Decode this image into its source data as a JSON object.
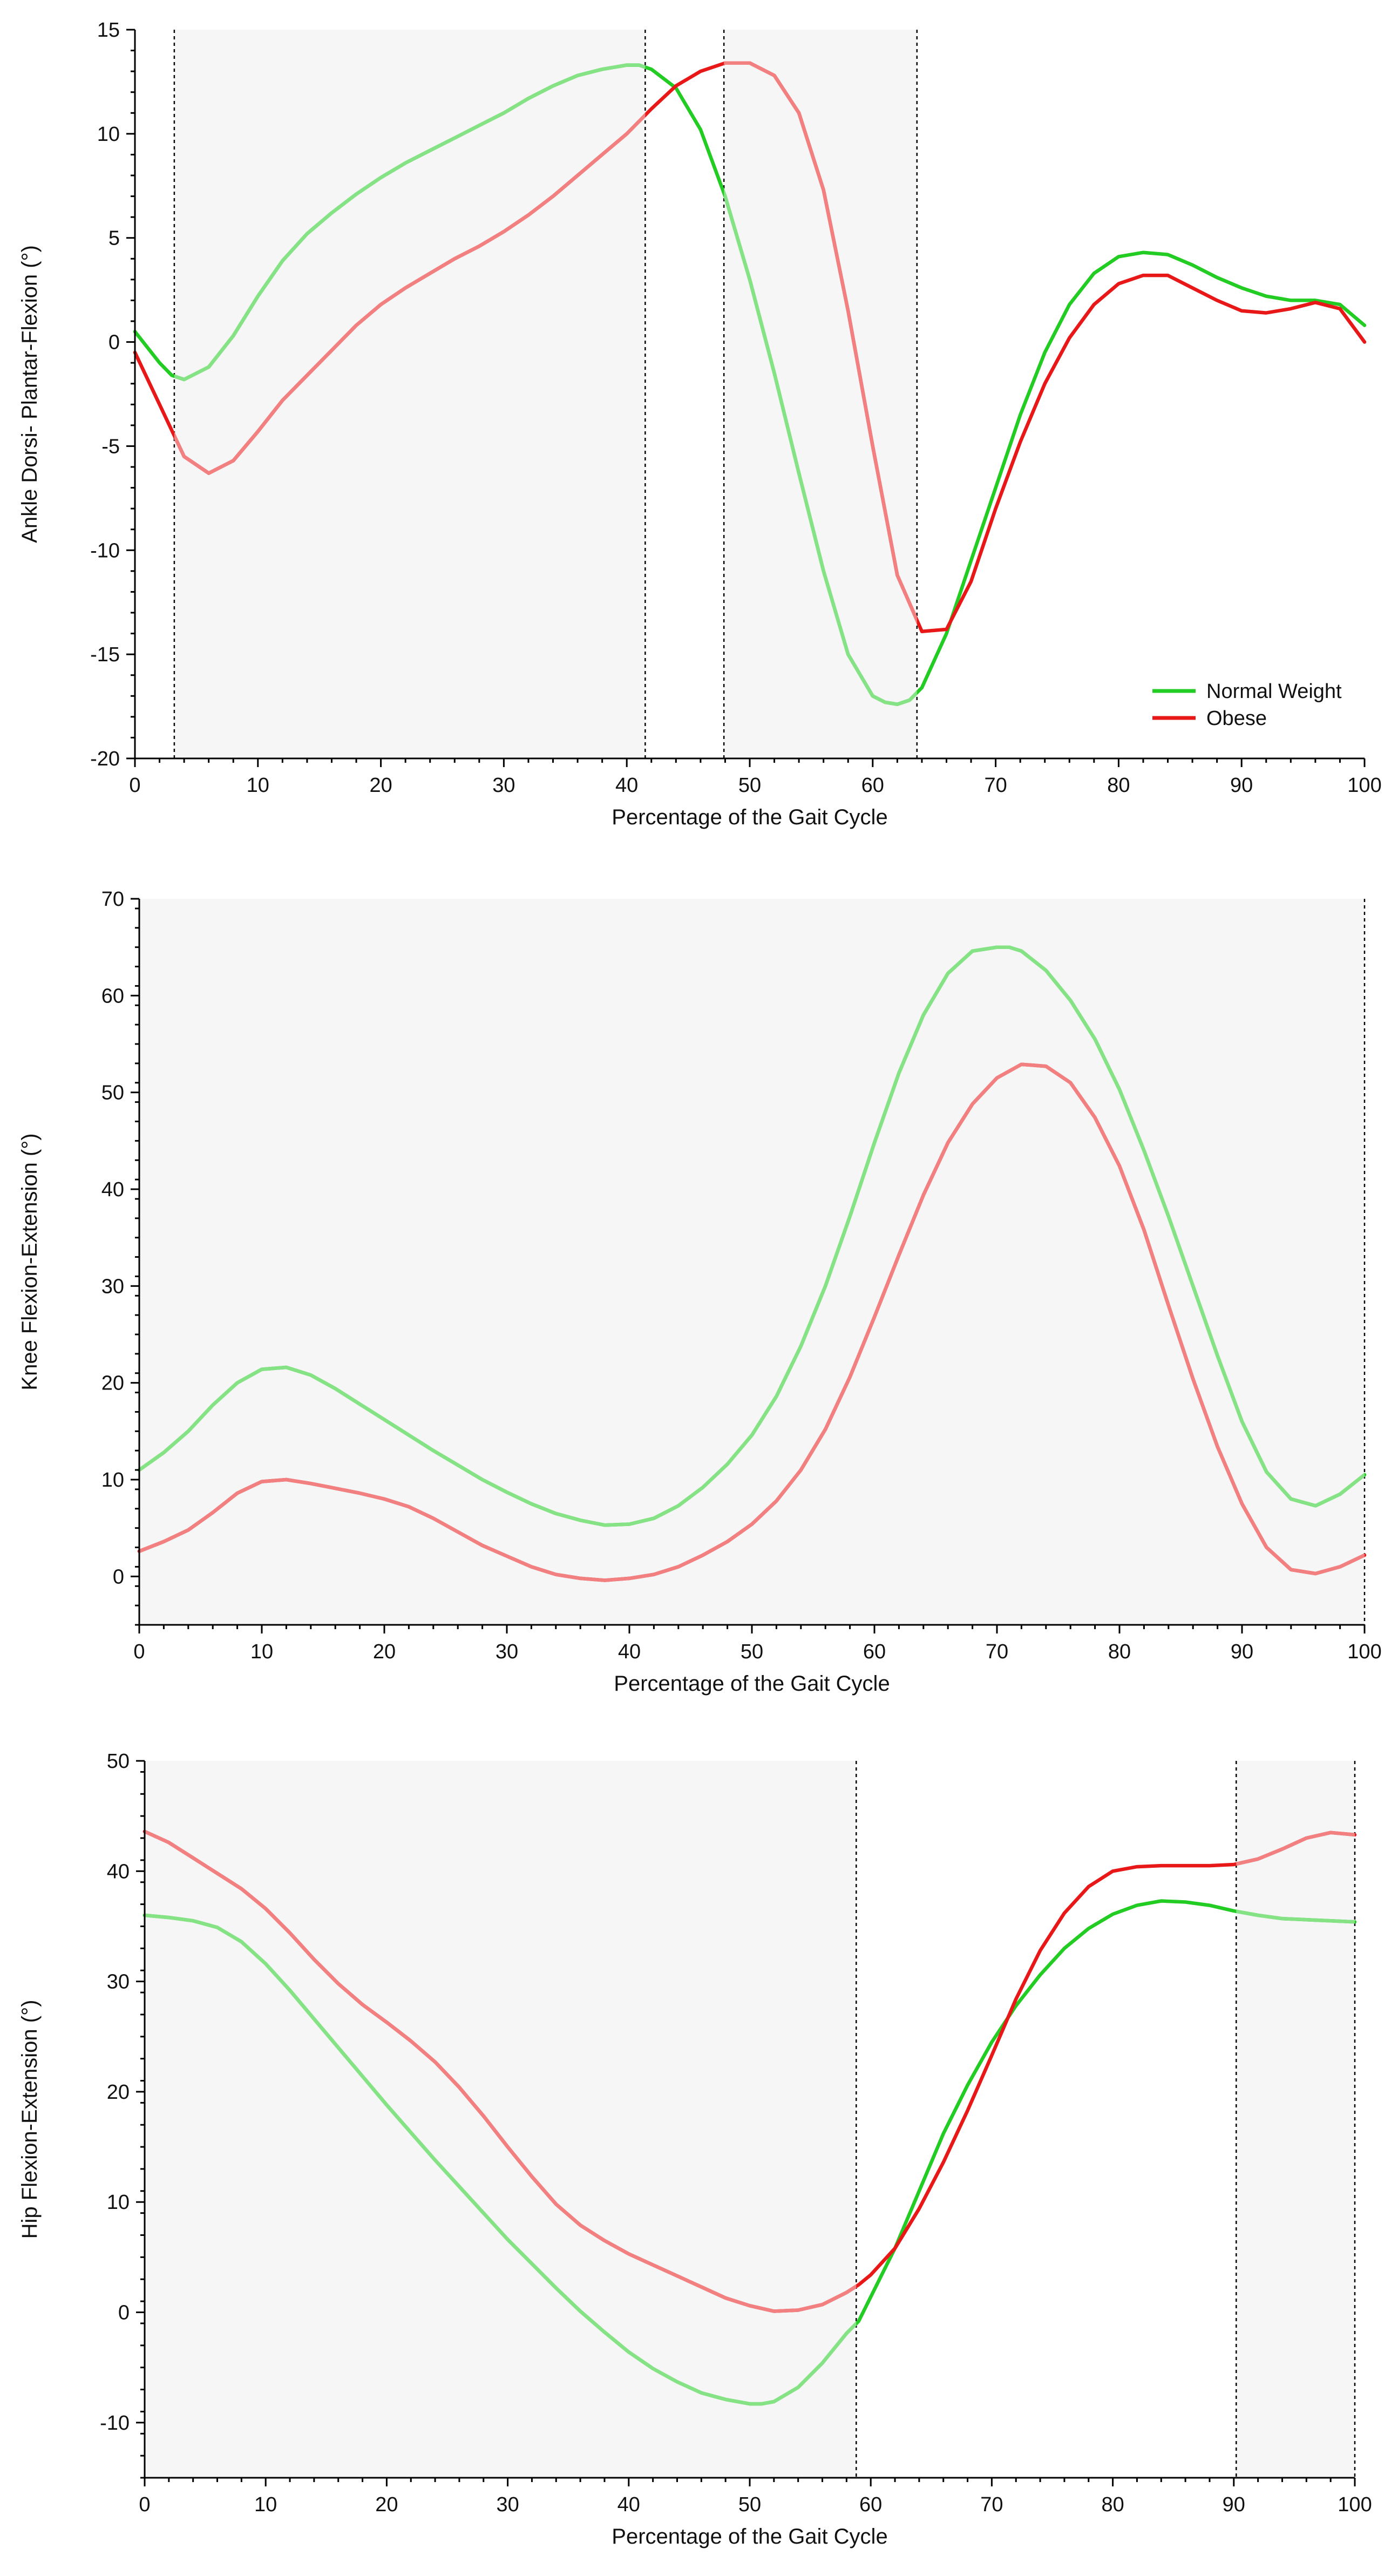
{
  "chart_data": [
    {
      "type": "line",
      "title": "",
      "xlabel": "Percentage of the Gait Cycle",
      "ylabel": "Ankle Dorsi- Plantar-Flexion (°)",
      "xlim": [
        0,
        100
      ],
      "ylim": [
        -20,
        15
      ],
      "xticks": [
        0,
        10,
        20,
        30,
        40,
        50,
        60,
        70,
        80,
        90,
        100
      ],
      "yticks": [
        -20,
        -15,
        -10,
        -5,
        0,
        5,
        10,
        15
      ],
      "shaded_ranges": [
        [
          3.2,
          41.5
        ],
        [
          47.9,
          63.6
        ]
      ],
      "vertical_lines": [
        3.2,
        41.5,
        47.9,
        63.6
      ],
      "legend": {
        "position": "bottom-right",
        "entries": [
          "Normal Weight",
          "Obese"
        ]
      },
      "series": [
        {
          "name": "Normal Weight",
          "color": "#22cc22",
          "x": [
            0,
            2,
            3,
            4,
            6,
            8,
            10,
            12,
            14,
            16,
            18,
            20,
            22,
            24,
            26,
            28,
            30,
            32,
            34,
            36,
            38,
            40,
            41,
            42,
            44,
            46,
            48,
            50,
            52,
            54,
            56,
            58,
            60,
            61,
            62,
            63,
            64,
            66,
            68,
            70,
            72,
            74,
            76,
            78,
            80,
            82,
            84,
            86,
            88,
            90,
            92,
            94,
            96,
            98,
            100
          ],
          "y": [
            0.5,
            -1.0,
            -1.6,
            -1.8,
            -1.2,
            0.3,
            2.2,
            3.9,
            5.2,
            6.2,
            7.1,
            7.9,
            8.6,
            9.2,
            9.8,
            10.4,
            11.0,
            11.7,
            12.3,
            12.8,
            13.1,
            13.3,
            13.3,
            13.1,
            12.2,
            10.2,
            7.0,
            3.0,
            -1.5,
            -6.3,
            -11.0,
            -15.0,
            -17.0,
            -17.3,
            -17.4,
            -17.2,
            -16.6,
            -14.0,
            -10.5,
            -7.0,
            -3.5,
            -0.5,
            1.8,
            3.3,
            4.1,
            4.3,
            4.2,
            3.7,
            3.1,
            2.6,
            2.2,
            2.0,
            2.0,
            1.8,
            0.8
          ]
        },
        {
          "name": "Obese",
          "color": "#e81818",
          "x": [
            0,
            2,
            4,
            6,
            8,
            10,
            12,
            14,
            16,
            18,
            20,
            22,
            24,
            26,
            28,
            30,
            32,
            34,
            36,
            38,
            40,
            42,
            44,
            46,
            48,
            50,
            52,
            54,
            56,
            58,
            60,
            62,
            64,
            66,
            68,
            70,
            72,
            74,
            76,
            78,
            80,
            82,
            84,
            86,
            88,
            90,
            92,
            94,
            96,
            98,
            100
          ],
          "y": [
            -0.5,
            -3.0,
            -5.5,
            -6.3,
            -5.7,
            -4.3,
            -2.8,
            -1.6,
            -0.4,
            0.8,
            1.8,
            2.6,
            3.3,
            4.0,
            4.6,
            5.3,
            6.1,
            7.0,
            8.0,
            9.0,
            10.0,
            11.2,
            12.3,
            13.0,
            13.4,
            13.4,
            12.8,
            11.0,
            7.3,
            1.5,
            -5.0,
            -11.2,
            -13.9,
            -13.8,
            -11.5,
            -8.0,
            -4.8,
            -2.0,
            0.2,
            1.8,
            2.8,
            3.2,
            3.2,
            2.6,
            2.0,
            1.5,
            1.4,
            1.6,
            1.9,
            1.6,
            0.0
          ]
        }
      ]
    },
    {
      "type": "line",
      "title": "",
      "xlabel": "Percentage of the Gait Cycle",
      "ylabel": "Knee Flexion-Extension (°)",
      "xlim": [
        0,
        100
      ],
      "ylim": [
        -5,
        70
      ],
      "xticks": [
        0,
        10,
        20,
        30,
        40,
        50,
        60,
        70,
        80,
        90,
        100
      ],
      "yticks": [
        0,
        10,
        20,
        30,
        40,
        50,
        60,
        70
      ],
      "shaded_ranges": [
        [
          0,
          100
        ]
      ],
      "vertical_lines": [
        100
      ],
      "series": [
        {
          "name": "Normal Weight",
          "color": "#22cc22",
          "x": [
            0,
            2,
            4,
            6,
            8,
            10,
            12,
            14,
            16,
            18,
            20,
            22,
            24,
            26,
            28,
            30,
            32,
            34,
            36,
            38,
            40,
            42,
            44,
            46,
            48,
            50,
            52,
            54,
            56,
            58,
            60,
            62,
            64,
            66,
            68,
            70,
            71,
            72,
            74,
            76,
            78,
            80,
            82,
            84,
            86,
            88,
            90,
            92,
            94,
            96,
            98,
            100
          ],
          "y": [
            11.0,
            12.8,
            15.0,
            17.7,
            20.0,
            21.4,
            21.6,
            20.8,
            19.4,
            17.8,
            16.2,
            14.6,
            13.0,
            11.5,
            10.0,
            8.7,
            7.5,
            6.5,
            5.8,
            5.3,
            5.4,
            6.0,
            7.3,
            9.2,
            11.6,
            14.6,
            18.6,
            23.8,
            30.0,
            37.2,
            44.8,
            52.0,
            58.0,
            62.3,
            64.6,
            65.0,
            65.0,
            64.6,
            62.6,
            59.5,
            55.5,
            50.3,
            44.0,
            37.2,
            30.0,
            22.8,
            16.0,
            10.8,
            8.0,
            7.3,
            8.5,
            10.5
          ]
        },
        {
          "name": "Obese",
          "color": "#e81818",
          "x": [
            0,
            2,
            4,
            6,
            8,
            10,
            12,
            14,
            16,
            18,
            20,
            22,
            24,
            26,
            28,
            30,
            32,
            34,
            36,
            38,
            40,
            42,
            44,
            46,
            48,
            50,
            52,
            54,
            56,
            58,
            60,
            62,
            64,
            66,
            68,
            70,
            72,
            74,
            76,
            78,
            80,
            82,
            84,
            86,
            88,
            90,
            92,
            94,
            96,
            98,
            100
          ],
          "y": [
            2.6,
            3.6,
            4.8,
            6.6,
            8.6,
            9.8,
            10.0,
            9.6,
            9.1,
            8.6,
            8.0,
            7.2,
            6.0,
            4.6,
            3.2,
            2.1,
            1.0,
            0.2,
            -0.2,
            -0.4,
            -0.2,
            0.2,
            1.0,
            2.2,
            3.6,
            5.4,
            7.8,
            11.0,
            15.2,
            20.6,
            26.8,
            33.2,
            39.4,
            44.8,
            48.8,
            51.5,
            52.9,
            52.7,
            51.0,
            47.4,
            42.4,
            35.8,
            28.0,
            20.4,
            13.4,
            7.5,
            3.0,
            0.7,
            0.3,
            1.0,
            2.2
          ]
        }
      ]
    },
    {
      "type": "line",
      "title": "",
      "xlabel": "Percentage of the Gait Cycle",
      "ylabel": "Hip Flexion-Extension (°)",
      "xlim": [
        0,
        100
      ],
      "ylim": [
        -15,
        50
      ],
      "xticks": [
        0,
        10,
        20,
        30,
        40,
        50,
        60,
        70,
        80,
        90,
        100
      ],
      "yticks": [
        -10,
        0,
        10,
        20,
        30,
        40,
        50
      ],
      "shaded_ranges": [
        [
          0,
          58.8
        ],
        [
          90.2,
          100
        ]
      ],
      "vertical_lines": [
        58.8,
        90.2,
        100
      ],
      "series": [
        {
          "name": "Normal Weight",
          "color": "#22cc22",
          "x": [
            0,
            2,
            4,
            6,
            8,
            10,
            12,
            14,
            16,
            18,
            20,
            22,
            24,
            26,
            28,
            30,
            32,
            34,
            36,
            38,
            40,
            42,
            44,
            46,
            48,
            50,
            51,
            52,
            54,
            56,
            58,
            59,
            60,
            62,
            64,
            66,
            68,
            70,
            72,
            74,
            76,
            78,
            80,
            82,
            84,
            86,
            88,
            90,
            92,
            94,
            96,
            98,
            100
          ],
          "y": [
            36.0,
            35.8,
            35.5,
            34.9,
            33.6,
            31.6,
            29.2,
            26.6,
            24.0,
            21.4,
            18.8,
            16.3,
            13.8,
            11.4,
            9.0,
            6.6,
            4.4,
            2.2,
            0.1,
            -1.8,
            -3.6,
            -5.1,
            -6.3,
            -7.3,
            -7.9,
            -8.3,
            -8.3,
            -8.1,
            -6.8,
            -4.6,
            -1.9,
            -0.8,
            1.4,
            5.8,
            11.0,
            16.2,
            20.6,
            24.5,
            27.8,
            30.6,
            33.0,
            34.8,
            36.1,
            36.9,
            37.3,
            37.2,
            36.9,
            36.4,
            36.0,
            35.7,
            35.6,
            35.5,
            35.4
          ]
        },
        {
          "name": "Obese",
          "color": "#e81818",
          "x": [
            0,
            2,
            4,
            6,
            8,
            10,
            12,
            14,
            16,
            18,
            20,
            22,
            24,
            26,
            28,
            30,
            32,
            34,
            36,
            38,
            40,
            42,
            44,
            46,
            48,
            50,
            52,
            54,
            56,
            58,
            59,
            60,
            62,
            64,
            66,
            68,
            70,
            72,
            74,
            76,
            78,
            80,
            82,
            84,
            86,
            88,
            90,
            92,
            94,
            96,
            98,
            100
          ],
          "y": [
            43.6,
            42.6,
            41.2,
            39.8,
            38.4,
            36.6,
            34.4,
            32.0,
            29.8,
            27.9,
            26.3,
            24.6,
            22.7,
            20.4,
            17.8,
            15.0,
            12.3,
            9.8,
            7.9,
            6.5,
            5.3,
            4.3,
            3.3,
            2.3,
            1.3,
            0.6,
            0.1,
            0.2,
            0.7,
            1.8,
            2.5,
            3.4,
            5.8,
            9.4,
            13.6,
            18.3,
            23.3,
            28.4,
            32.8,
            36.2,
            38.6,
            40.0,
            40.4,
            40.5,
            40.5,
            40.5,
            40.6,
            41.1,
            42.0,
            43.0,
            43.5,
            43.3
          ]
        }
      ]
    }
  ]
}
